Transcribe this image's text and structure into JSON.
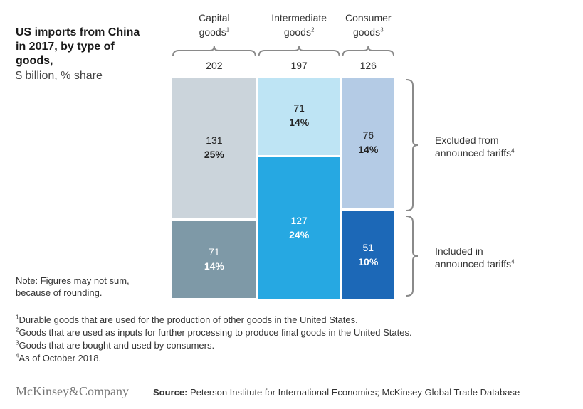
{
  "title": "US imports from China in 2017, by type of goods,",
  "subtitle": "$ billion, % share",
  "columns": [
    {
      "label_line1": "Capital",
      "label_line2": "goods",
      "sup": "1",
      "total": "202"
    },
    {
      "label_line1": "Intermediate",
      "label_line2": "goods",
      "sup": "2",
      "total": "197"
    },
    {
      "label_line1": "Consumer",
      "label_line2": "goods",
      "sup": "3",
      "total": "126"
    }
  ],
  "brackets": [
    {
      "line1": "Excluded from",
      "line2": "announced tariffs",
      "sup": "4"
    },
    {
      "line1": "Included in",
      "line2": "announced tariffs",
      "sup": "4"
    }
  ],
  "note": "Note: Figures may not sum, because of rounding.",
  "footnotes": [
    {
      "sup": "1",
      "text": "Durable goods that are used for the production of other goods in the United States."
    },
    {
      "sup": "2",
      "text": "Goods that are used as inputs for further processing to produce final goods in the United States."
    },
    {
      "sup": "3",
      "text": "Goods that are bought and used by consumers."
    },
    {
      "sup": "4",
      "text": "As of October 2018."
    }
  ],
  "brand": "McKinsey&Company",
  "source_label": "Source:",
  "source_text": "Peterson Institute for International Economics; McKinsey Global Trade Database",
  "chart_data": {
    "type": "mekko",
    "title": "US imports from China in 2017, by type of goods,",
    "units": "$ billion, % share",
    "categories": [
      "Capital goods",
      "Intermediate goods",
      "Consumer goods"
    ],
    "totals": [
      202,
      197,
      126
    ],
    "series": [
      {
        "name": "Excluded from announced tariffs",
        "values": [
          131,
          71,
          76
        ],
        "shares": [
          "25%",
          "14%",
          "14%"
        ],
        "colors": [
          "#cbd4db",
          "#bee4f4",
          "#b4cbe5"
        ],
        "text_colors": [
          "#222222",
          "#222222",
          "#222222"
        ]
      },
      {
        "name": "Included in announced tariffs",
        "values": [
          71,
          127,
          51
        ],
        "shares": [
          "14%",
          "24%",
          "10%"
        ],
        "colors": [
          "#7e99a7",
          "#26a8e2",
          "#1c68b7"
        ],
        "text_colors": [
          "#ffffff",
          "#ffffff",
          "#ffffff"
        ]
      }
    ]
  }
}
